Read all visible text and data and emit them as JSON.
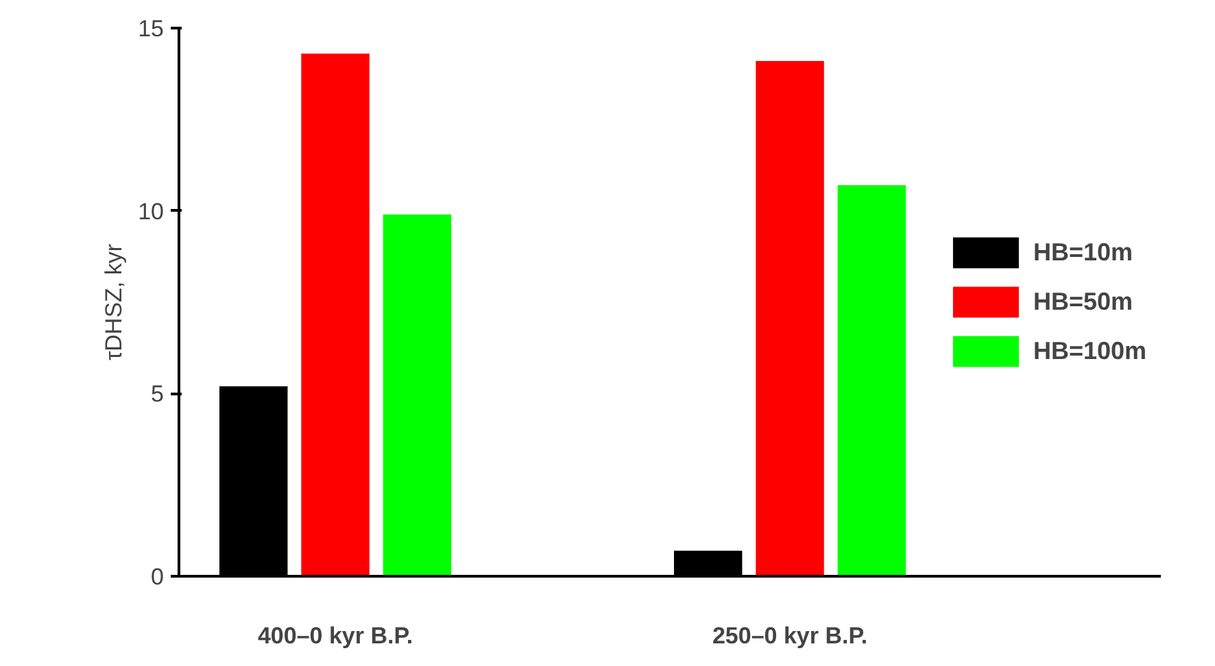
{
  "chart_data": {
    "type": "bar",
    "categories": [
      "400–0 kyr B.P.",
      "250–0 kyr B.P."
    ],
    "ylabel": "τDHSZ, kyr",
    "series": [
      {
        "name": "HB=10m",
        "color": "#000000",
        "values": [
          5.2,
          0.7
        ]
      },
      {
        "name": "HB=50m",
        "color": "#ff0000",
        "values": [
          14.3,
          14.1
        ]
      },
      {
        "name": "HB=100m",
        "color": "#00ff00",
        "values": [
          9.9,
          10.7
        ]
      }
    ],
    "ylim": [
      0,
      15
    ],
    "yticks": [
      0,
      5,
      10,
      15
    ],
    "grid": false,
    "legend": "right"
  }
}
